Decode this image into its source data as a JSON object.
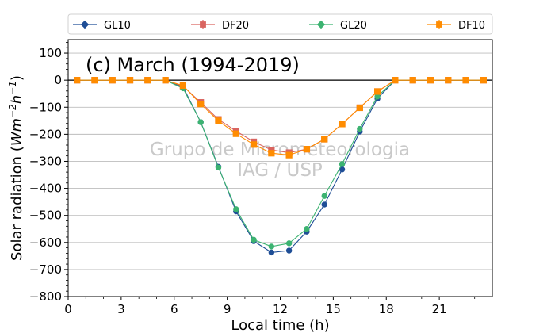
{
  "chart_data": {
    "type": "line",
    "title": "(c) March (1994-2019)",
    "watermark": [
      "Grupo de Micrometeorologia",
      "IAG / USP"
    ],
    "xlabel": "Local time (h)",
    "ylabel": "Solar radiation (",
    "ylabel_unit": "Wm",
    "ylabel_exp1": "−2",
    "ylabel_mid": "h",
    "ylabel_exp2": "−1",
    "ylabel_close": ")",
    "xlim": [
      0,
      24
    ],
    "ylim": [
      -800,
      150
    ],
    "xticks": [
      0,
      3,
      6,
      9,
      12,
      15,
      18,
      21
    ],
    "yticks": [
      100,
      0,
      -100,
      -200,
      -300,
      -400,
      -500,
      -600,
      -700,
      -800
    ],
    "ytick_labels": [
      "100",
      "0",
      "−100",
      "−200",
      "−300",
      "−400",
      "−500",
      "−600",
      "−700",
      "−800"
    ],
    "grid": "horizontal",
    "legend_position": "top",
    "x": [
      0.5,
      1.5,
      2.5,
      3.5,
      4.5,
      5.5,
      6.5,
      7.5,
      8.5,
      9.5,
      10.5,
      11.5,
      12.5,
      13.5,
      14.5,
      15.5,
      16.5,
      17.5,
      18.5,
      19.5,
      20.5,
      21.5,
      22.5,
      23.5
    ],
    "series": [
      {
        "name": "GL10",
        "color": "#1f4e96",
        "marker": "circle",
        "values": [
          0,
          0,
          0,
          0,
          0,
          0,
          -25,
          -155,
          -320,
          -485,
          -595,
          -637,
          -630,
          -560,
          -460,
          -330,
          -190,
          -68,
          0,
          0,
          0,
          0,
          0,
          0
        ]
      },
      {
        "name": "DF20",
        "color": "#d9645f",
        "marker": "square",
        "values": [
          0,
          0,
          0,
          0,
          0,
          0,
          -22,
          -82,
          -145,
          -188,
          -228,
          -258,
          -268,
          -255,
          -218,
          -162,
          -102,
          -42,
          0,
          0,
          0,
          0,
          0,
          0
        ]
      },
      {
        "name": "GL20",
        "color": "#3cb371",
        "marker": "circle",
        "values": [
          0,
          0,
          0,
          0,
          0,
          0,
          -30,
          -155,
          -323,
          -477,
          -590,
          -615,
          -603,
          -550,
          -428,
          -310,
          -180,
          -60,
          0,
          0,
          0,
          0,
          0,
          0
        ]
      },
      {
        "name": "DF10",
        "color": "#ff8c00",
        "marker": "square",
        "values": [
          0,
          0,
          0,
          0,
          0,
          0,
          -20,
          -88,
          -150,
          -198,
          -238,
          -270,
          -277,
          -255,
          -218,
          -162,
          -102,
          -42,
          0,
          0,
          0,
          0,
          0,
          0
        ]
      }
    ]
  }
}
